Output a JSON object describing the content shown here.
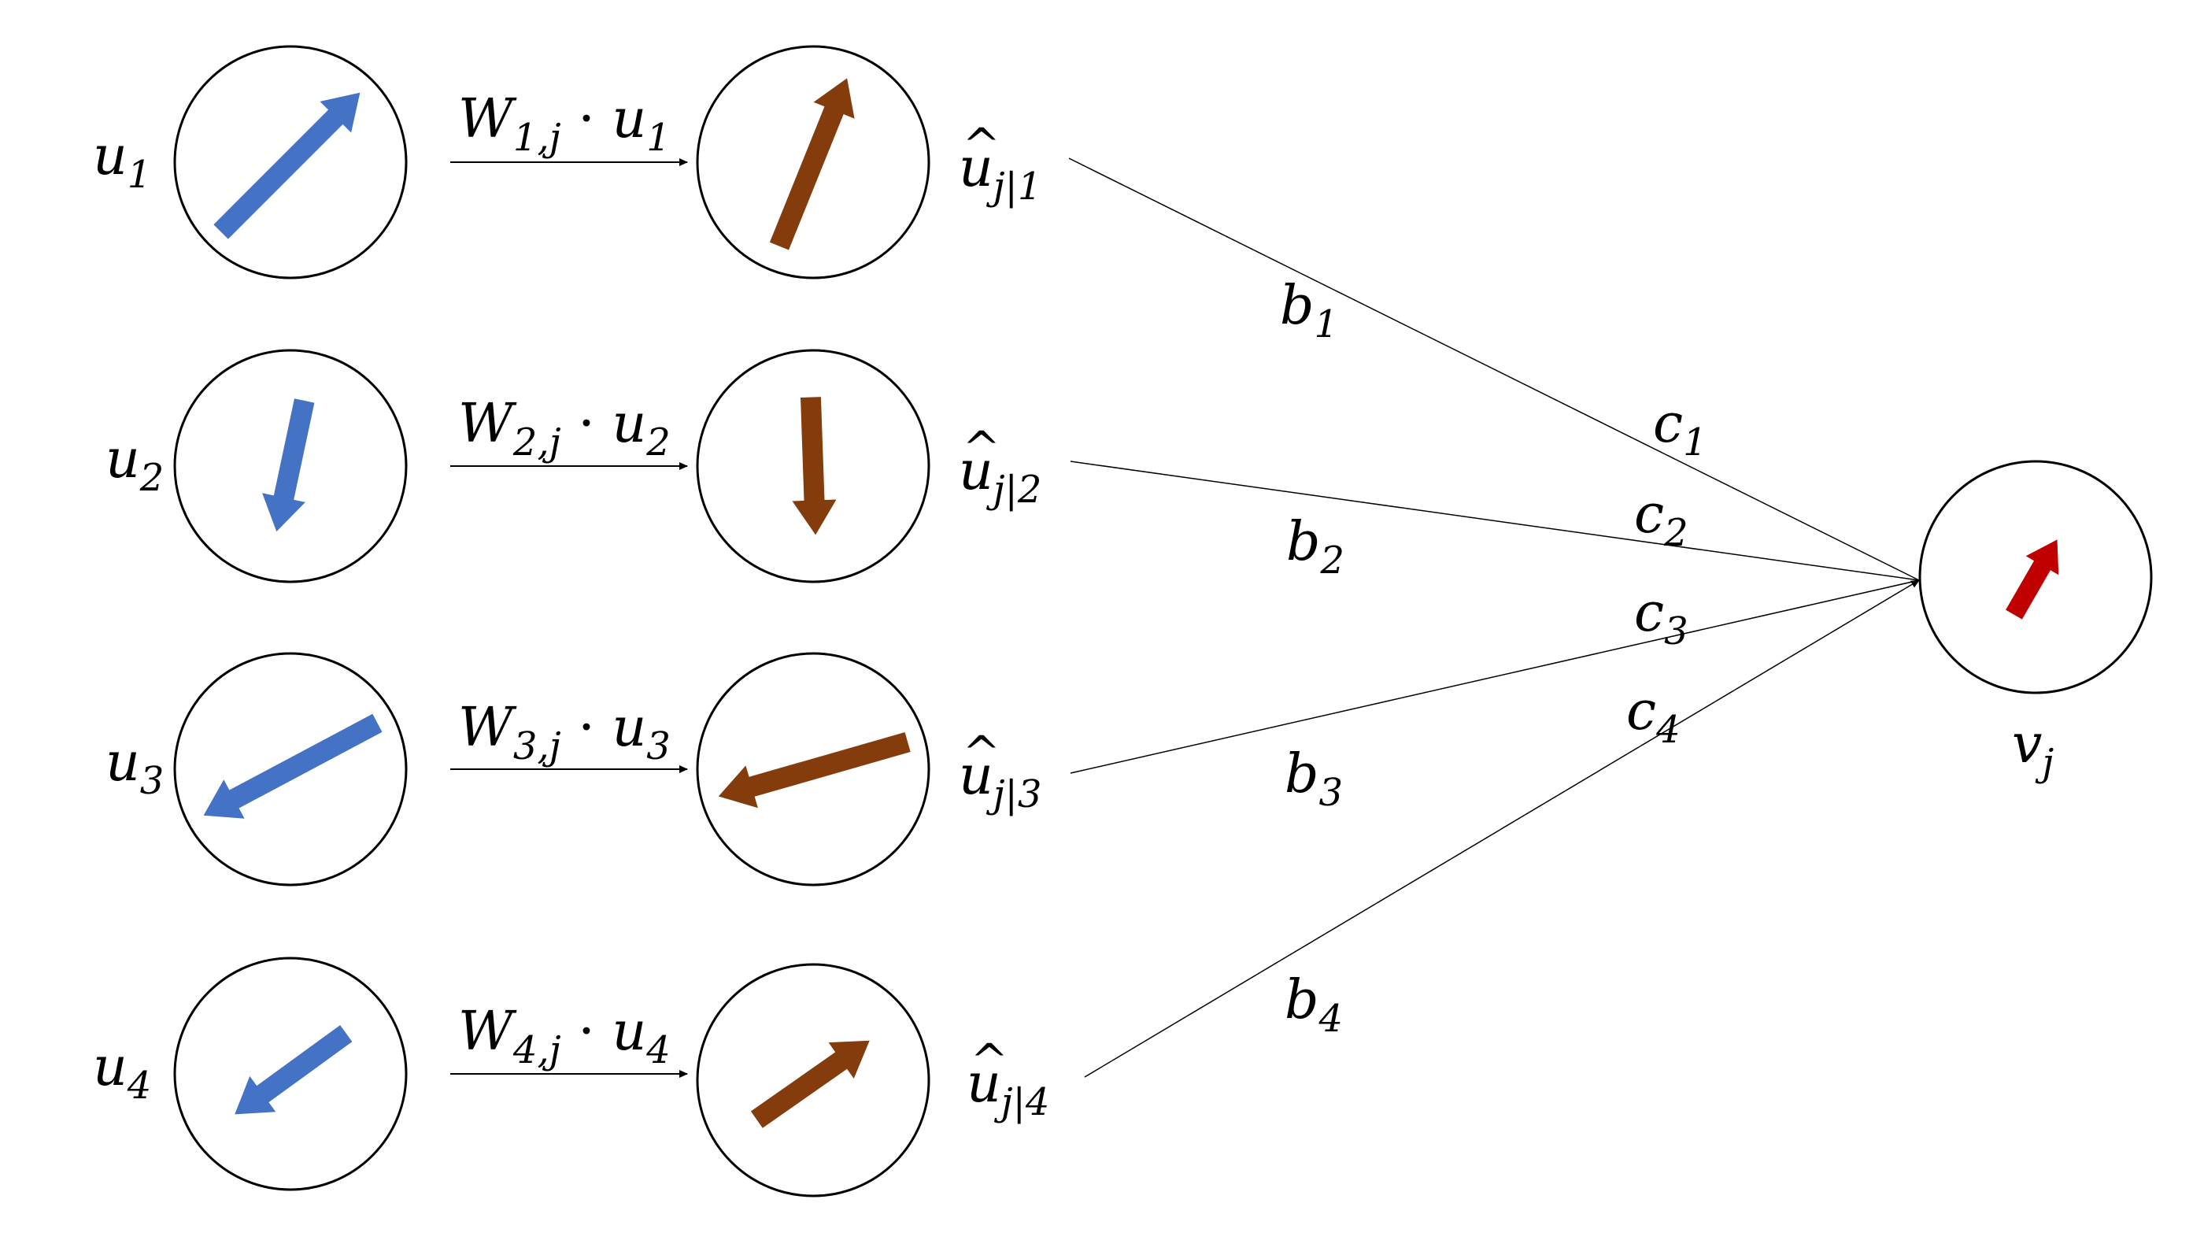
{
  "colors": {
    "input_arrow": "#4472C4",
    "prediction_arrow": "#843C0C",
    "output_arrow": "#C00000",
    "lines": "#000000",
    "background": "#ffffff"
  },
  "inputs": [
    {
      "symbol": "u",
      "index": "1",
      "direction_deg": 45
    },
    {
      "symbol": "u",
      "index": "2",
      "direction_deg": 258
    },
    {
      "symbol": "u",
      "index": "3",
      "direction_deg": 208
    },
    {
      "symbol": "u",
      "index": "4",
      "direction_deg": 216
    }
  ],
  "transforms": [
    {
      "W": "W",
      "W_index": "1,j",
      "op": "·",
      "u": "u",
      "u_index": "1"
    },
    {
      "W": "W",
      "W_index": "2,j",
      "op": "·",
      "u": "u",
      "u_index": "2"
    },
    {
      "W": "W",
      "W_index": "3,j",
      "op": "·",
      "u": "u",
      "u_index": "3"
    },
    {
      "W": "W",
      "W_index": "4,j",
      "op": "·",
      "u": "u",
      "u_index": "4"
    }
  ],
  "predictions": [
    {
      "symbol": "u",
      "index": "j|1",
      "direction_deg": 68
    },
    {
      "symbol": "u",
      "index": "j|2",
      "direction_deg": 272
    },
    {
      "symbol": "u",
      "index": "j|3",
      "direction_deg": 196
    },
    {
      "symbol": "u",
      "index": "j|4",
      "direction_deg": 35
    }
  ],
  "b_labels": [
    {
      "symbol": "b",
      "index": "1"
    },
    {
      "symbol": "b",
      "index": "2"
    },
    {
      "symbol": "b",
      "index": "3"
    },
    {
      "symbol": "b",
      "index": "4"
    }
  ],
  "c_labels": [
    {
      "symbol": "c",
      "index": "1"
    },
    {
      "symbol": "c",
      "index": "2"
    },
    {
      "symbol": "c",
      "index": "3"
    },
    {
      "symbol": "c",
      "index": "4"
    }
  ],
  "output": {
    "symbol": "v",
    "index": "j",
    "direction_deg": 60
  }
}
